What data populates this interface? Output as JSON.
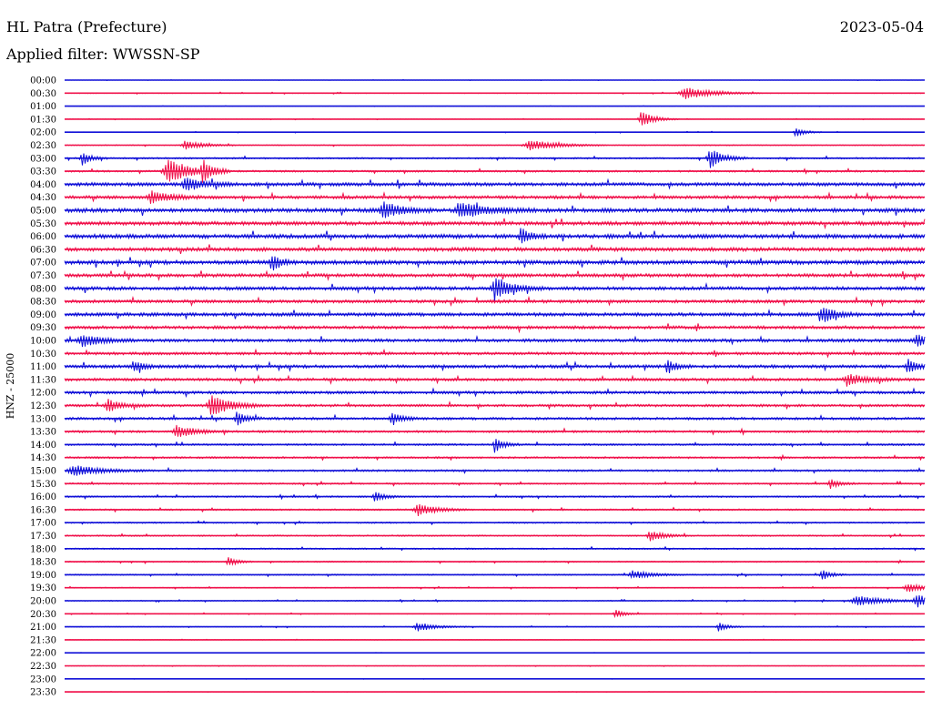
{
  "header": {
    "station": "HL Patra (Prefecture)",
    "date": "2023-05-04",
    "filter": "Applied filter: WWSSN-SP"
  },
  "colors": {
    "trace_a": "#1010d8",
    "trace_b": "#f0104a"
  },
  "chart_data": {
    "type": "line",
    "title": "",
    "ylabel": "HNZ - 25000",
    "xlabel": "",
    "grid": false,
    "legend": "none",
    "categories": [
      "00:00",
      "00:30",
      "01:00",
      "01:30",
      "02:00",
      "02:30",
      "03:00",
      "03:30",
      "04:00",
      "04:30",
      "05:00",
      "05:30",
      "06:00",
      "06:30",
      "07:00",
      "07:30",
      "08:00",
      "08:30",
      "09:00",
      "09:30",
      "10:00",
      "10:30",
      "11:00",
      "11:30",
      "12:00",
      "12:30",
      "13:00",
      "13:30",
      "14:00",
      "14:30",
      "15:00",
      "15:30",
      "16:00",
      "16:30",
      "17:00",
      "17:30",
      "18:00",
      "18:30",
      "19:00",
      "19:30",
      "20:00",
      "20:30",
      "21:00",
      "21:30",
      "22:00",
      "22:30",
      "23:00",
      "23:30"
    ],
    "series_colors": [
      "#1010d8",
      "#f0104a"
    ],
    "noise_levels": [
      0.05,
      0.12,
      0.05,
      0.08,
      0.1,
      0.15,
      0.25,
      0.3,
      0.55,
      0.5,
      0.65,
      0.6,
      0.65,
      0.6,
      0.65,
      0.55,
      0.55,
      0.5,
      0.55,
      0.5,
      0.5,
      0.45,
      0.5,
      0.45,
      0.45,
      0.4,
      0.4,
      0.35,
      0.3,
      0.3,
      0.3,
      0.25,
      0.25,
      0.25,
      0.22,
      0.22,
      0.22,
      0.2,
      0.2,
      0.15,
      0.15,
      0.12,
      0.12,
      0.08,
      0.05,
      0.08,
      0.05,
      0.05
    ],
    "events": [
      {
        "row": 1,
        "x": 0.72,
        "amp": 7,
        "width": 0.03
      },
      {
        "row": 3,
        "x": 0.67,
        "amp": 9,
        "width": 0.015
      },
      {
        "row": 4,
        "x": 0.85,
        "amp": 6,
        "width": 0.01
      },
      {
        "row": 5,
        "x": 0.14,
        "amp": 5,
        "width": 0.02
      },
      {
        "row": 5,
        "x": 0.54,
        "amp": 6,
        "width": 0.03
      },
      {
        "row": 6,
        "x": 0.02,
        "amp": 8,
        "width": 0.01
      },
      {
        "row": 6,
        "x": 0.75,
        "amp": 11,
        "width": 0.015
      },
      {
        "row": 7,
        "x": 0.12,
        "amp": 14,
        "width": 0.025
      },
      {
        "row": 7,
        "x": 0.16,
        "amp": 12,
        "width": 0.01
      },
      {
        "row": 8,
        "x": 0.14,
        "amp": 8,
        "width": 0.02
      },
      {
        "row": 9,
        "x": 0.1,
        "amp": 8,
        "width": 0.02
      },
      {
        "row": 10,
        "x": 0.37,
        "amp": 9,
        "width": 0.02
      },
      {
        "row": 10,
        "x": 0.46,
        "amp": 8,
        "width": 0.03
      },
      {
        "row": 12,
        "x": 0.53,
        "amp": 9,
        "width": 0.01
      },
      {
        "row": 14,
        "x": 0.24,
        "amp": 10,
        "width": 0.01
      },
      {
        "row": 16,
        "x": 0.5,
        "amp": 11,
        "width": 0.02
      },
      {
        "row": 18,
        "x": 0.88,
        "amp": 9,
        "width": 0.015
      },
      {
        "row": 20,
        "x": 0.02,
        "amp": 7,
        "width": 0.02
      },
      {
        "row": 20,
        "x": 0.99,
        "amp": 7,
        "width": 0.015
      },
      {
        "row": 22,
        "x": 0.08,
        "amp": 7,
        "width": 0.01
      },
      {
        "row": 22,
        "x": 0.7,
        "amp": 8,
        "width": 0.01
      },
      {
        "row": 22,
        "x": 0.98,
        "amp": 9,
        "width": 0.01
      },
      {
        "row": 23,
        "x": 0.91,
        "amp": 7,
        "width": 0.02
      },
      {
        "row": 25,
        "x": 0.17,
        "amp": 13,
        "width": 0.02
      },
      {
        "row": 25,
        "x": 0.05,
        "amp": 7,
        "width": 0.015
      },
      {
        "row": 26,
        "x": 0.2,
        "amp": 8,
        "width": 0.01
      },
      {
        "row": 26,
        "x": 0.38,
        "amp": 8,
        "width": 0.01
      },
      {
        "row": 27,
        "x": 0.13,
        "amp": 7,
        "width": 0.02
      },
      {
        "row": 28,
        "x": 0.5,
        "amp": 8,
        "width": 0.01
      },
      {
        "row": 30,
        "x": 0.01,
        "amp": 6,
        "width": 0.03
      },
      {
        "row": 31,
        "x": 0.89,
        "amp": 6,
        "width": 0.01
      },
      {
        "row": 32,
        "x": 0.36,
        "amp": 6,
        "width": 0.01
      },
      {
        "row": 33,
        "x": 0.41,
        "amp": 7,
        "width": 0.02
      },
      {
        "row": 35,
        "x": 0.68,
        "amp": 6,
        "width": 0.015
      },
      {
        "row": 37,
        "x": 0.19,
        "amp": 5,
        "width": 0.01
      },
      {
        "row": 38,
        "x": 0.66,
        "amp": 5,
        "width": 0.02
      },
      {
        "row": 38,
        "x": 0.88,
        "amp": 6,
        "width": 0.01
      },
      {
        "row": 39,
        "x": 0.98,
        "amp": 5,
        "width": 0.02
      },
      {
        "row": 40,
        "x": 0.92,
        "amp": 6,
        "width": 0.03
      },
      {
        "row": 40,
        "x": 0.99,
        "amp": 8,
        "width": 0.015
      },
      {
        "row": 41,
        "x": 0.64,
        "amp": 5,
        "width": 0.01
      },
      {
        "row": 42,
        "x": 0.41,
        "amp": 5,
        "width": 0.02
      },
      {
        "row": 42,
        "x": 0.76,
        "amp": 5,
        "width": 0.01
      }
    ]
  }
}
